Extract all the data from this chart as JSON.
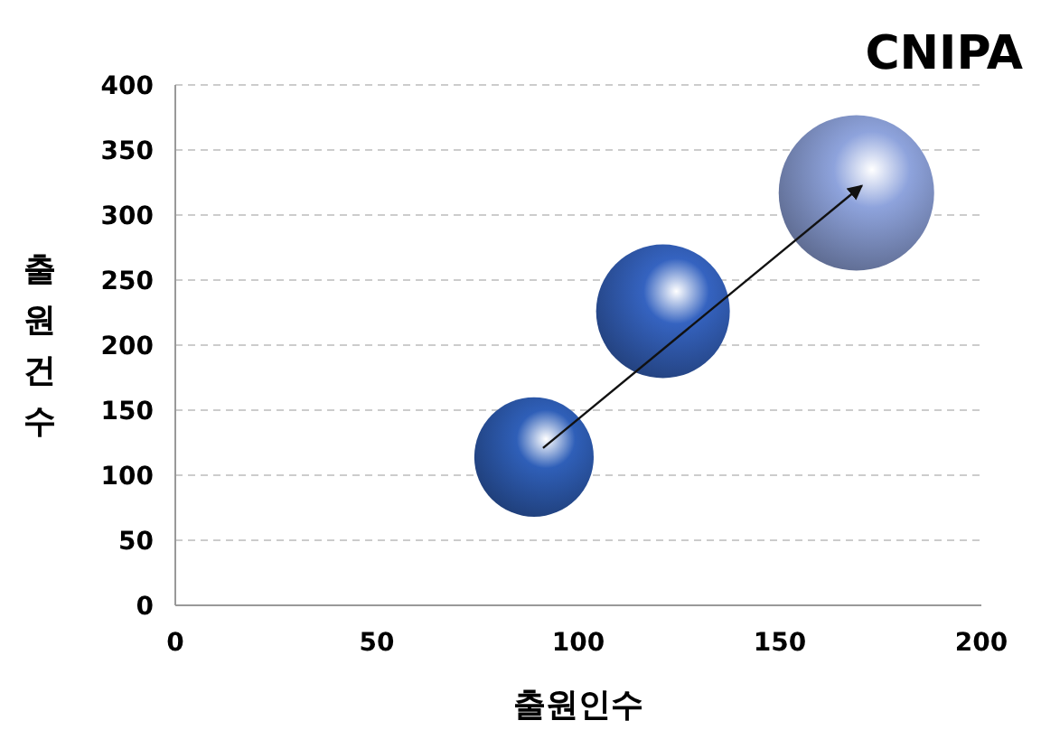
{
  "chart_data": {
    "type": "bubble",
    "title": "CNIPA",
    "xlabel": "출원인수",
    "ylabel": "출원건수",
    "x": [
      89,
      121,
      169
    ],
    "values": [
      114,
      226,
      317
    ],
    "sizes": [
      0.59,
      0.74,
      1
    ],
    "colors": [
      "#2f5fb8",
      "#3563c0",
      "#8ea3dc"
    ],
    "xlim": [
      0,
      200
    ],
    "xticks": [
      0,
      50,
      100,
      150,
      200
    ],
    "ylim": [
      0,
      400
    ],
    "yticks": [
      0,
      50,
      100,
      150,
      200,
      250,
      300,
      350,
      400
    ],
    "grid": "y"
  }
}
